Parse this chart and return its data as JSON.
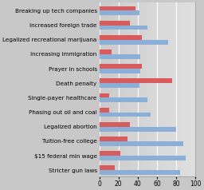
{
  "categories": [
    "Breaking up tech companies",
    "Increased foreign trade",
    "Legalized recreational marijuana",
    "Increasing immigration",
    "Prayer in schools",
    "Death penalty",
    "Single-payer healthcare",
    "Phasing out oil and coal",
    "Legalized abortion",
    "Tuition-free college",
    "$15 federal min wage",
    "Stricter gun laws"
  ],
  "blue_values": [
    42,
    50,
    72,
    43,
    43,
    42,
    50,
    53,
    80,
    87,
    90,
    84
  ],
  "red_values": [
    38,
    32,
    44,
    13,
    44,
    76,
    10,
    10,
    32,
    29,
    22,
    16
  ],
  "blue_color": "#8BAFD6",
  "red_color": "#D95C5C",
  "bg_color": "#C8C8C8",
  "plot_bg_left": "#DCDCDC",
  "plot_bg_right": "#F0F0F0",
  "xlim": [
    0,
    100
  ],
  "xticks": [
    0,
    20,
    40,
    60,
    80,
    100
  ],
  "bar_height": 0.32,
  "grid_color": "#FFFFFF",
  "axis_label_fontsize": 5.2,
  "tick_fontsize": 5.5
}
